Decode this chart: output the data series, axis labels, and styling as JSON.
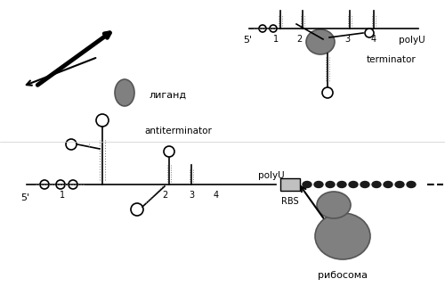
{
  "bg_color": "#ffffff",
  "gray_color": "#808080",
  "dark_gray": "#555555",
  "light_gray": "#aaaaaa",
  "black": "#000000",
  "text_antiterminator": "antiterminator",
  "text_terminator": "terminator",
  "text_ribosoma": "рибосома",
  "text_ligand": "лиганд",
  "text_polyU_top": "polyU",
  "text_RBS": "RBS",
  "text_5prime": "5'",
  "text_polyU_bot": "polyU",
  "text_numbers_top": [
    "1",
    "2",
    "3",
    "4"
  ],
  "text_numbers_bot": [
    "1",
    "2",
    "3",
    "4"
  ]
}
